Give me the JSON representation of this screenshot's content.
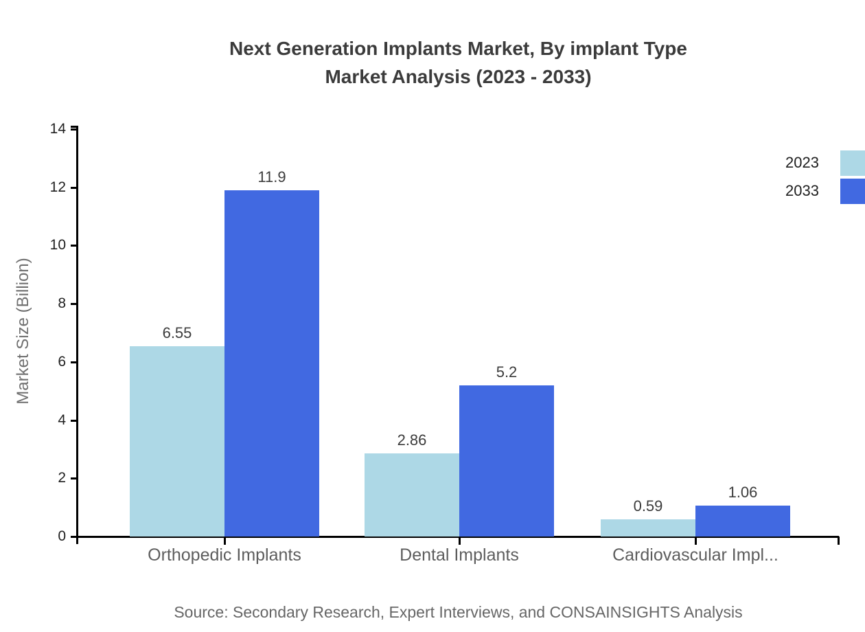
{
  "title": {
    "line1": "Next Generation Implants Market, By implant Type",
    "line2": "Market Analysis (2023 - 2033)"
  },
  "source_note": "Source: Secondary Research, Expert Interviews, and CONSAINSIGHTS Analysis",
  "chart_data": {
    "type": "bar",
    "title": "Next Generation Implants Market, By implant Type Market Analysis (2023 - 2033)",
    "categories": [
      "Orthopedic Implants",
      "Dental Implants",
      "Cardiovascular Impl..."
    ],
    "series": [
      {
        "name": "2023",
        "color": "#ADD8E6",
        "values": [
          6.55,
          2.86,
          0.59
        ]
      },
      {
        "name": "2033",
        "color": "#4169E1",
        "values": [
          11.9,
          5.2,
          1.06
        ]
      }
    ],
    "xlabel": "",
    "ylabel": "Market Size (Billion)",
    "ylim": [
      0,
      14
    ],
    "yticks": [
      0,
      2,
      4,
      6,
      8,
      10,
      12,
      14
    ],
    "grid": false,
    "legend_position": "top-right",
    "bar_value_labels": [
      "6.55",
      "11.9",
      "2.86",
      "5.2",
      "0.59",
      "1.06"
    ]
  },
  "colors": {
    "series_2023": "#ADD8E6",
    "series_2033": "#4169E1",
    "axis": "#000000",
    "title_text": "#3b3b3b",
    "tick_label": "#1f1f1f",
    "category_label": "#5d5d5d",
    "value_label": "#3c3c3c",
    "axis_title": "#707070",
    "legend_text": "#202020",
    "source_text": "#666666"
  }
}
